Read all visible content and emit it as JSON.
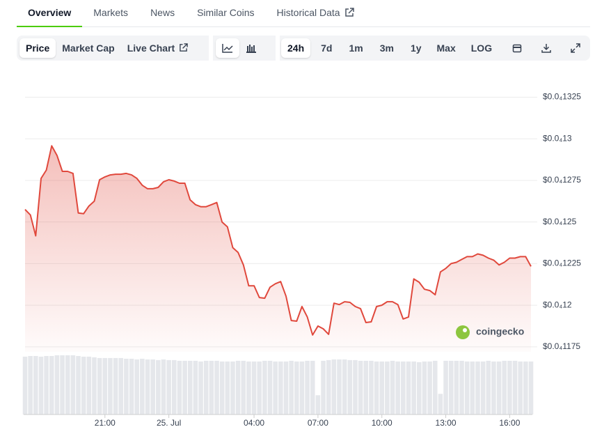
{
  "tabs": [
    "Overview",
    "Markets",
    "News",
    "Similar Coins",
    "Historical Data"
  ],
  "toolbar": {
    "views": [
      "Price",
      "Market Cap",
      "Live Chart"
    ],
    "ranges": [
      "24h",
      "7d",
      "1m",
      "3m",
      "1y",
      "Max",
      "LOG"
    ]
  },
  "chart_data": {
    "type": "line",
    "watermark": "coingecko",
    "color": "#e0483c",
    "xlim": [
      0,
      95
    ],
    "xticks": [
      {
        "value": 15,
        "label": "21:00"
      },
      {
        "value": 27,
        "label": "25. Jul"
      },
      {
        "value": 43,
        "label": "04:00"
      },
      {
        "value": 55,
        "label": "07:00"
      },
      {
        "value": 67,
        "label": "10:00"
      },
      {
        "value": 79,
        "label": "13:00"
      },
      {
        "value": 91,
        "label": "16:00"
      }
    ],
    "ylim": [
      1.172e-05,
      1.334e-05
    ],
    "yticks": [
      {
        "value": 1.325e-05,
        "label": "$0.0₄1325"
      },
      {
        "value": 1.3e-05,
        "label": "$0.0₄13"
      },
      {
        "value": 1.275e-05,
        "label": "$0.0₄1275"
      },
      {
        "value": 1.25e-05,
        "label": "$0.0₄125"
      },
      {
        "value": 1.225e-05,
        "label": "$0.0₄1225"
      },
      {
        "value": 1.2e-05,
        "label": "$0.0₄12"
      },
      {
        "value": 1.175e-05,
        "label": "$0.0₄1175"
      }
    ],
    "grid": true,
    "values": [
      1.2575e-05,
      1.2542e-05,
      1.2417e-05,
      1.2762e-05,
      1.2812e-05,
      1.2958e-05,
      1.29e-05,
      1.2804e-05,
      1.2804e-05,
      1.2792e-05,
      1.2554e-05,
      1.255e-05,
      1.2596e-05,
      1.2625e-05,
      1.2754e-05,
      1.2771e-05,
      1.2783e-05,
      1.2787e-05,
      1.2787e-05,
      1.2792e-05,
      1.2783e-05,
      1.2762e-05,
      1.2721e-05,
      1.27e-05,
      1.27e-05,
      1.2708e-05,
      1.2742e-05,
      1.2754e-05,
      1.2746e-05,
      1.2733e-05,
      1.2733e-05,
      1.2633e-05,
      1.2604e-05,
      1.2592e-05,
      1.2592e-05,
      1.2604e-05,
      1.2617e-05,
      1.25e-05,
      1.2471e-05,
      1.2346e-05,
      1.2317e-05,
      1.2242e-05,
      1.2117e-05,
      1.2117e-05,
      1.2046e-05,
      1.2042e-05,
      1.2108e-05,
      1.2129e-05,
      1.2142e-05,
      1.2054e-05,
      1.1908e-05,
      1.1904e-05,
      1.1992e-05,
      1.1929e-05,
      1.1821e-05,
      1.1875e-05,
      1.1858e-05,
      1.1825e-05,
      1.2012e-05,
      1.2004e-05,
      1.2021e-05,
      1.2017e-05,
      1.1992e-05,
      1.1979e-05,
      1.1896e-05,
      1.19e-05,
      1.1992e-05,
      1.2e-05,
      1.2021e-05,
      1.2021e-05,
      1.2004e-05,
      1.1917e-05,
      1.1929e-05,
      1.2158e-05,
      1.2138e-05,
      1.2096e-05,
      1.2088e-05,
      1.2063e-05,
      1.22e-05,
      1.2221e-05,
      1.225e-05,
      1.2258e-05,
      1.2275e-05,
      1.2292e-05,
      1.2292e-05,
      1.2308e-05,
      1.23e-05,
      1.2283e-05,
      1.2271e-05,
      1.2242e-05,
      1.2258e-05,
      1.2283e-05,
      1.2283e-05,
      1.2292e-05,
      1.2292e-05,
      1.2233e-05
    ],
    "volume": [
      84,
      85,
      85,
      84,
      85,
      85,
      86,
      86,
      86,
      86,
      85,
      84,
      84,
      83,
      82,
      82,
      82,
      82,
      82,
      81,
      81,
      80,
      81,
      80,
      80,
      79,
      80,
      79,
      79,
      78,
      78,
      78,
      78,
      77,
      78,
      78,
      78,
      77,
      77,
      77,
      78,
      78,
      77,
      77,
      77,
      78,
      78,
      77,
      77,
      77,
      78,
      77,
      77,
      78,
      78,
      28,
      78,
      79,
      80,
      80,
      80,
      79,
      79,
      78,
      78,
      78,
      77,
      77,
      77,
      78,
      77,
      77,
      77,
      77,
      76,
      77,
      77,
      78,
      30,
      78,
      78,
      78,
      78,
      77,
      77,
      77,
      77,
      78,
      77,
      77,
      78,
      78,
      78,
      77,
      77,
      77
    ]
  }
}
